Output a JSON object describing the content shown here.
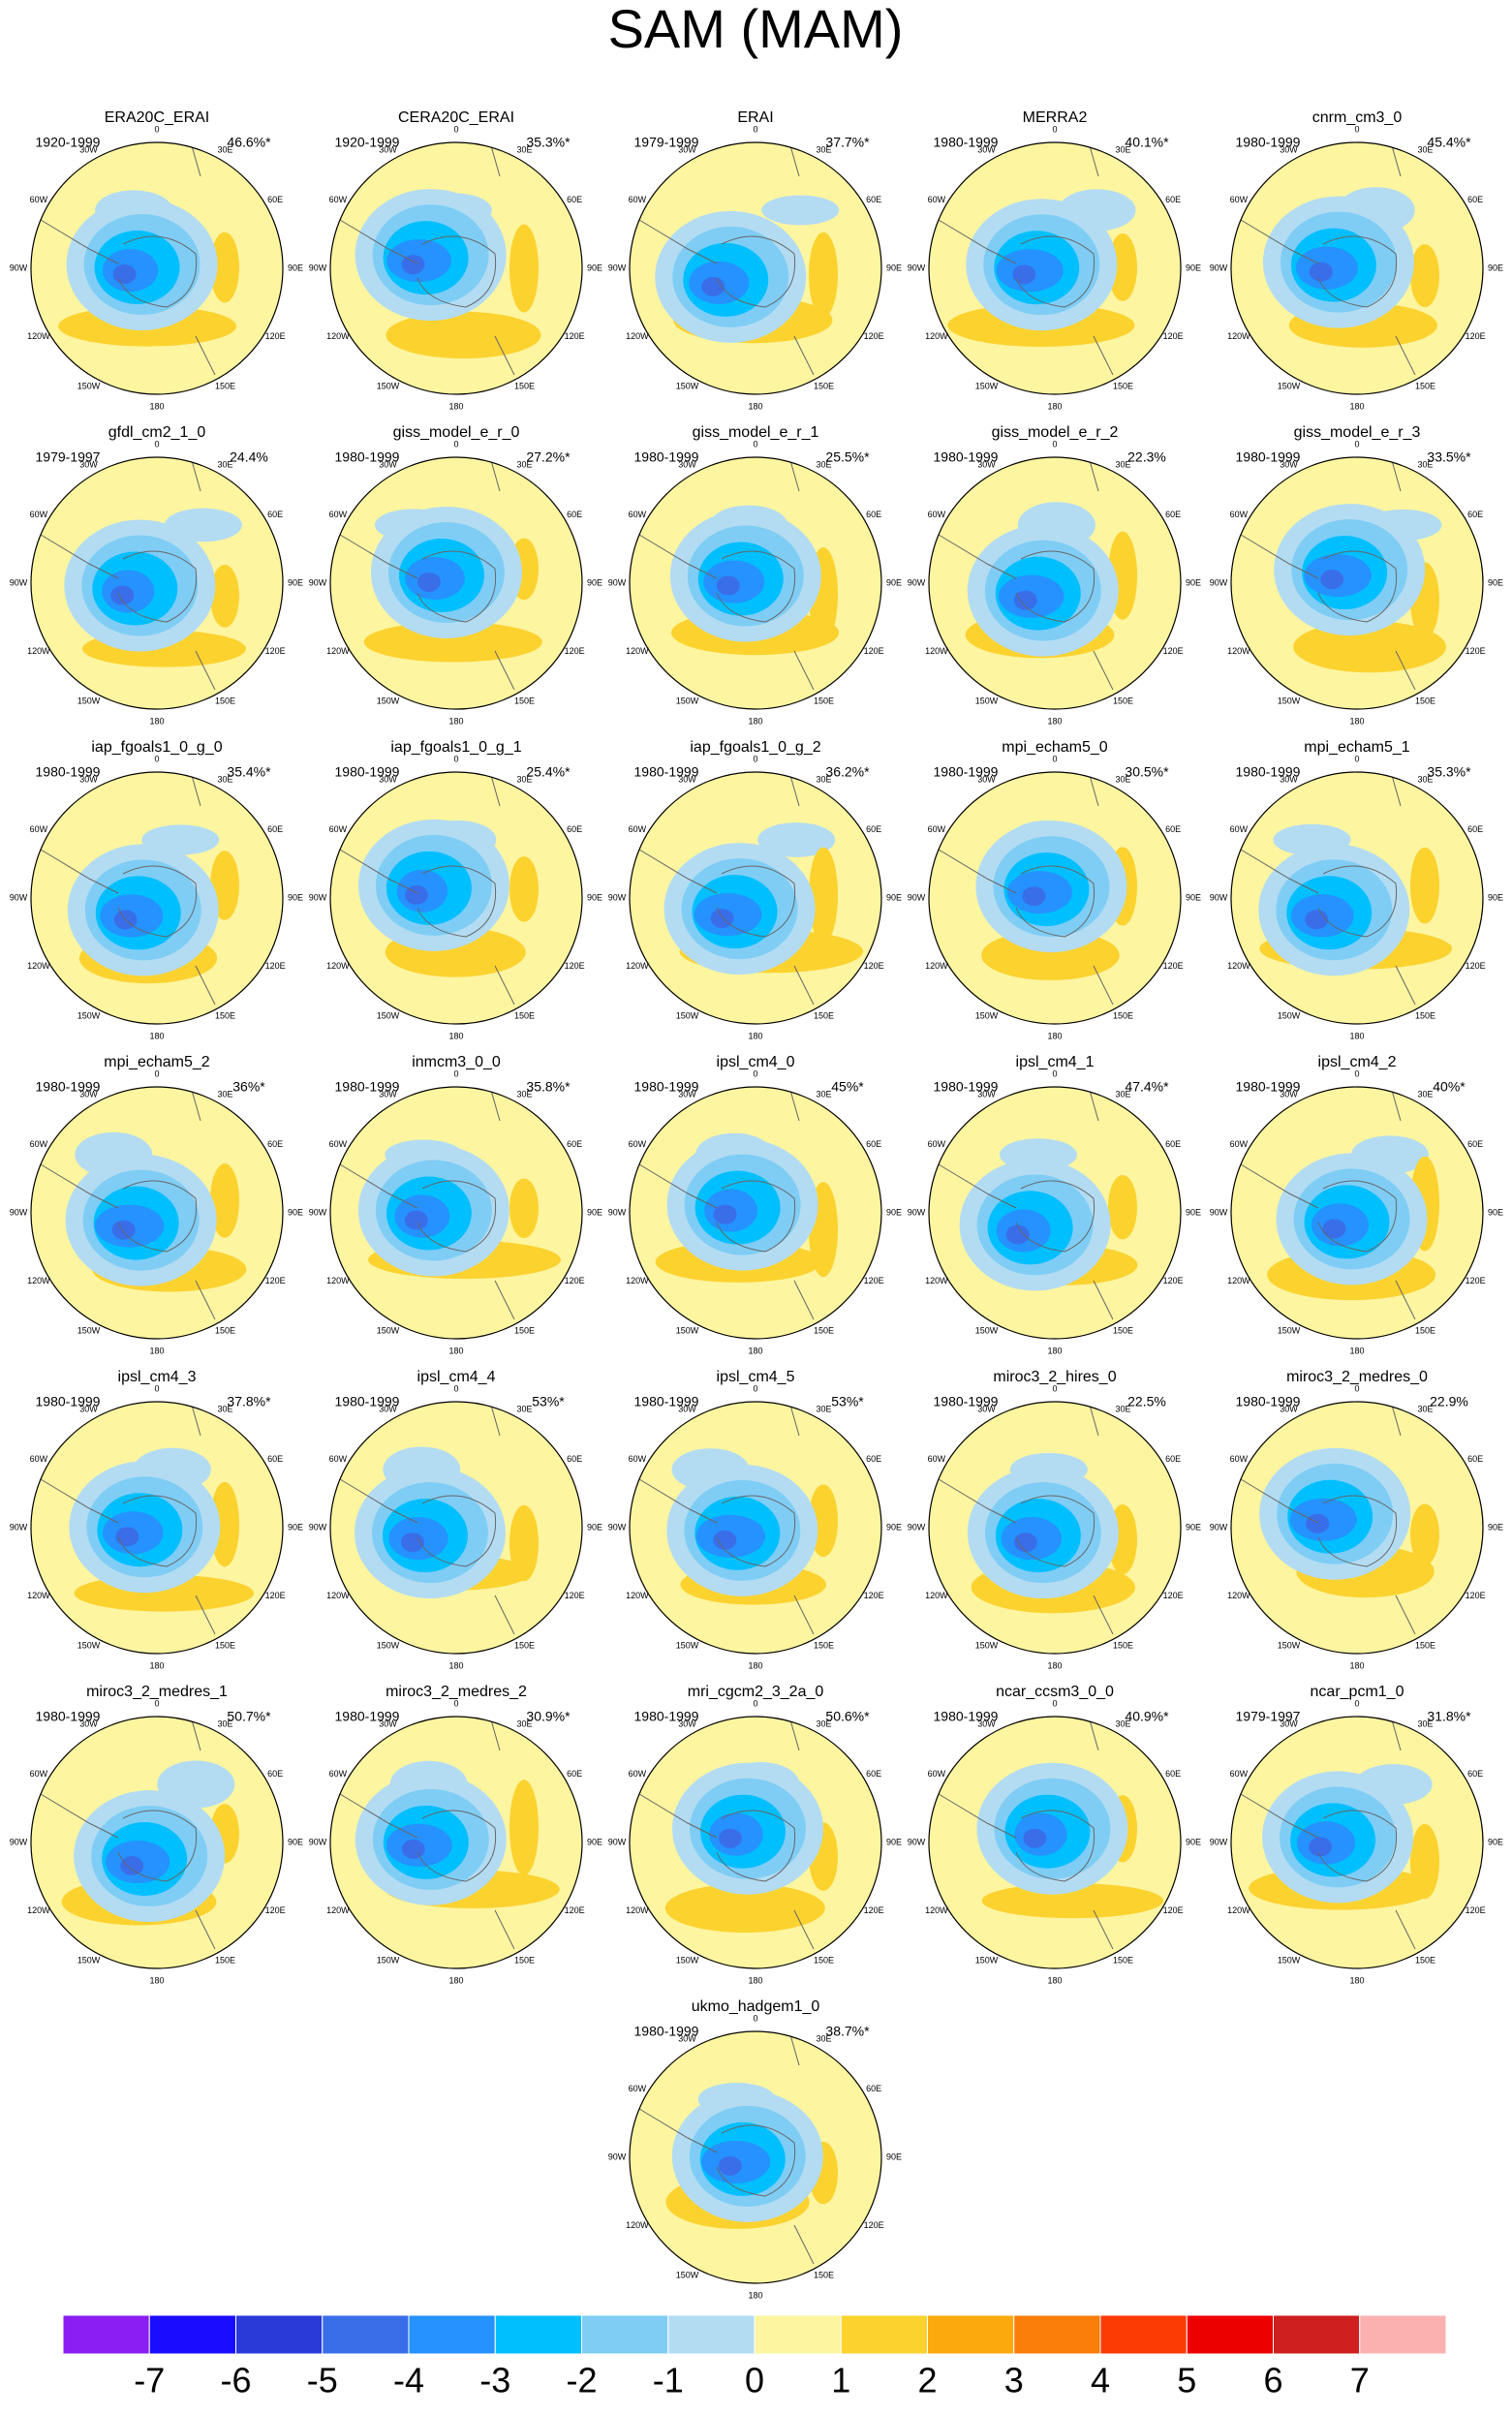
{
  "title": "SAM (MAM)",
  "lon_labels": [
    "0",
    "30E",
    "60E",
    "90E",
    "120E",
    "150E",
    "180",
    "150W",
    "120W",
    "90W",
    "60W",
    "30W"
  ],
  "panels": [
    {
      "title": "ERA20C_ERAI",
      "period": "1920-1999",
      "variance": "46.6%*"
    },
    {
      "title": "CERA20C_ERAI",
      "period": "1920-1999",
      "variance": "35.3%*"
    },
    {
      "title": "ERAI",
      "period": "1979-1999",
      "variance": "37.7%*"
    },
    {
      "title": "MERRA2",
      "period": "1980-1999",
      "variance": "40.1%*"
    },
    {
      "title": "cnrm_cm3_0",
      "period": "1980-1999",
      "variance": "45.4%*"
    },
    {
      "title": "gfdl_cm2_1_0",
      "period": "1979-1997",
      "variance": "24.4%"
    },
    {
      "title": "giss_model_e_r_0",
      "period": "1980-1999",
      "variance": "27.2%*"
    },
    {
      "title": "giss_model_e_r_1",
      "period": "1980-1999",
      "variance": "25.5%*"
    },
    {
      "title": "giss_model_e_r_2",
      "period": "1980-1999",
      "variance": "22.3%"
    },
    {
      "title": "giss_model_e_r_3",
      "period": "1980-1999",
      "variance": "33.5%*"
    },
    {
      "title": "iap_fgoals1_0_g_0",
      "period": "1980-1999",
      "variance": "35.4%*"
    },
    {
      "title": "iap_fgoals1_0_g_1",
      "period": "1980-1999",
      "variance": "25.4%*"
    },
    {
      "title": "iap_fgoals1_0_g_2",
      "period": "1980-1999",
      "variance": "36.2%*"
    },
    {
      "title": "mpi_echam5_0",
      "period": "1980-1999",
      "variance": "30.5%*"
    },
    {
      "title": "mpi_echam5_1",
      "period": "1980-1999",
      "variance": "35.3%*"
    },
    {
      "title": "mpi_echam5_2",
      "period": "1980-1999",
      "variance": "36%*"
    },
    {
      "title": "inmcm3_0_0",
      "period": "1980-1999",
      "variance": "35.8%*"
    },
    {
      "title": "ipsl_cm4_0",
      "period": "1980-1999",
      "variance": "45%*"
    },
    {
      "title": "ipsl_cm4_1",
      "period": "1980-1999",
      "variance": "47.4%*"
    },
    {
      "title": "ipsl_cm4_2",
      "period": "1980-1999",
      "variance": "40%*"
    },
    {
      "title": "ipsl_cm4_3",
      "period": "1980-1999",
      "variance": "37.8%*"
    },
    {
      "title": "ipsl_cm4_4",
      "period": "1980-1999",
      "variance": "53%*"
    },
    {
      "title": "ipsl_cm4_5",
      "period": "1980-1999",
      "variance": "53%*"
    },
    {
      "title": "miroc3_2_hires_0",
      "period": "1980-1999",
      "variance": "22.5%"
    },
    {
      "title": "miroc3_2_medres_0",
      "period": "1980-1999",
      "variance": "22.9%"
    },
    {
      "title": "miroc3_2_medres_1",
      "period": "1980-1999",
      "variance": "50.7%*"
    },
    {
      "title": "miroc3_2_medres_2",
      "period": "1980-1999",
      "variance": "30.9%*"
    },
    {
      "title": "mri_cgcm2_3_2a_0",
      "period": "1980-1999",
      "variance": "50.6%*"
    },
    {
      "title": "ncar_ccsm3_0_0",
      "period": "1980-1999",
      "variance": "40.9%*"
    },
    {
      "title": "ncar_pcm1_0",
      "period": "1979-1997",
      "variance": "31.8%*"
    },
    {
      "title": "ukmo_hadgem1_0",
      "period": "1980-1999",
      "variance": "38.7%*"
    }
  ],
  "colorbar": {
    "colors": [
      "#8b1ef2",
      "#1a0cff",
      "#2a3ad9",
      "#3a6ee8",
      "#2592ff",
      "#00bfff",
      "#7fcdf5",
      "#b3dcf2",
      "#fdf5a0",
      "#fcd22f",
      "#fca90e",
      "#fb7e0b",
      "#fb3a04",
      "#ec0000",
      "#cf1f1f",
      "#fcb1b1"
    ],
    "ticks": [
      -7,
      -6,
      -5,
      -4,
      -3,
      -2,
      -1,
      0,
      1,
      2,
      3,
      4,
      5,
      6,
      7
    ]
  }
}
